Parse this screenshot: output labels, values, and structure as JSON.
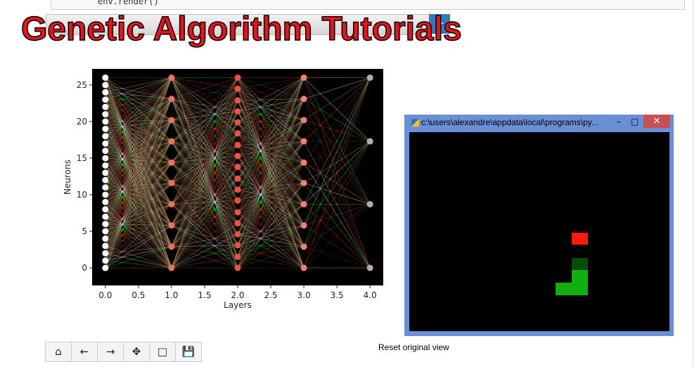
{
  "notebook": {
    "code": "env.render()",
    "title": "Genetic Algorithm Tutorials",
    "status": "Reset original view"
  },
  "window": {
    "title": "c:\\users\\alexandre\\appdata\\local\\programs\\py..."
  },
  "chart_data": {
    "type": "scatter",
    "xlabel": "Layers",
    "ylabel": "Neurons",
    "xlim": [
      -0.2,
      4.2
    ],
    "ylim": [
      -2.4,
      27.2
    ],
    "xticks": [
      {
        "value": 0,
        "label": "0.0"
      },
      {
        "value": 0.5,
        "label": "0.5"
      },
      {
        "value": 1,
        "label": "1.0"
      },
      {
        "value": 1.5,
        "label": "1.5"
      },
      {
        "value": 2,
        "label": "2.0"
      },
      {
        "value": 2.5,
        "label": "2.5"
      },
      {
        "value": 3,
        "label": "3.0"
      },
      {
        "value": 3.5,
        "label": "3.5"
      },
      {
        "value": 4,
        "label": "4.0"
      }
    ],
    "yticks": [
      0,
      5,
      10,
      15,
      20,
      25
    ],
    "edge_colors": [
      "#ff3b1f",
      "#22dd22",
      "#ffffff",
      "#ffb0a0",
      "#8a2010",
      "#555555"
    ],
    "series": [
      {
        "color": "#ffffff",
        "x": [
          0,
          0,
          0,
          0,
          0,
          0,
          0,
          0,
          0,
          0,
          0,
          0,
          0,
          0,
          0,
          0,
          0,
          0,
          0,
          0,
          0,
          0,
          0,
          0,
          0,
          0,
          0
        ],
        "values": [
          0,
          1,
          2,
          3,
          4,
          5,
          6,
          7,
          8,
          9,
          10,
          11,
          12,
          13,
          14,
          15,
          16,
          17,
          18,
          19,
          20,
          21,
          22,
          23,
          24,
          25,
          26
        ]
      },
      {
        "color": "#f07060",
        "x": [
          1,
          1,
          1,
          1,
          1,
          1,
          1,
          1,
          1,
          1
        ],
        "values": [
          0,
          2.9,
          5.8,
          8.7,
          11.6,
          14.4,
          17.3,
          20.2,
          23.1,
          26
        ]
      },
      {
        "color": "#f05040",
        "x": [
          2,
          2,
          2,
          2,
          2,
          2,
          2,
          2,
          2,
          2,
          2,
          2,
          2,
          2,
          2,
          2,
          2,
          2
        ],
        "values": [
          0,
          1.5,
          3.1,
          4.6,
          6.1,
          7.6,
          9.2,
          10.7,
          12.2,
          13.8,
          15.3,
          16.8,
          18.4,
          19.9,
          21.4,
          22.9,
          24.5,
          26
        ]
      },
      {
        "color": "#f08070",
        "x": [
          3,
          3,
          3,
          3,
          3,
          3,
          3,
          3,
          3,
          3
        ],
        "values": [
          0,
          2.9,
          5.8,
          8.7,
          11.6,
          14.4,
          17.3,
          20.2,
          23.1,
          26
        ]
      },
      {
        "color": "#b0b0b0",
        "x": [
          4,
          4,
          4,
          4
        ],
        "values": [
          0,
          8.7,
          17.3,
          26
        ]
      }
    ]
  }
}
